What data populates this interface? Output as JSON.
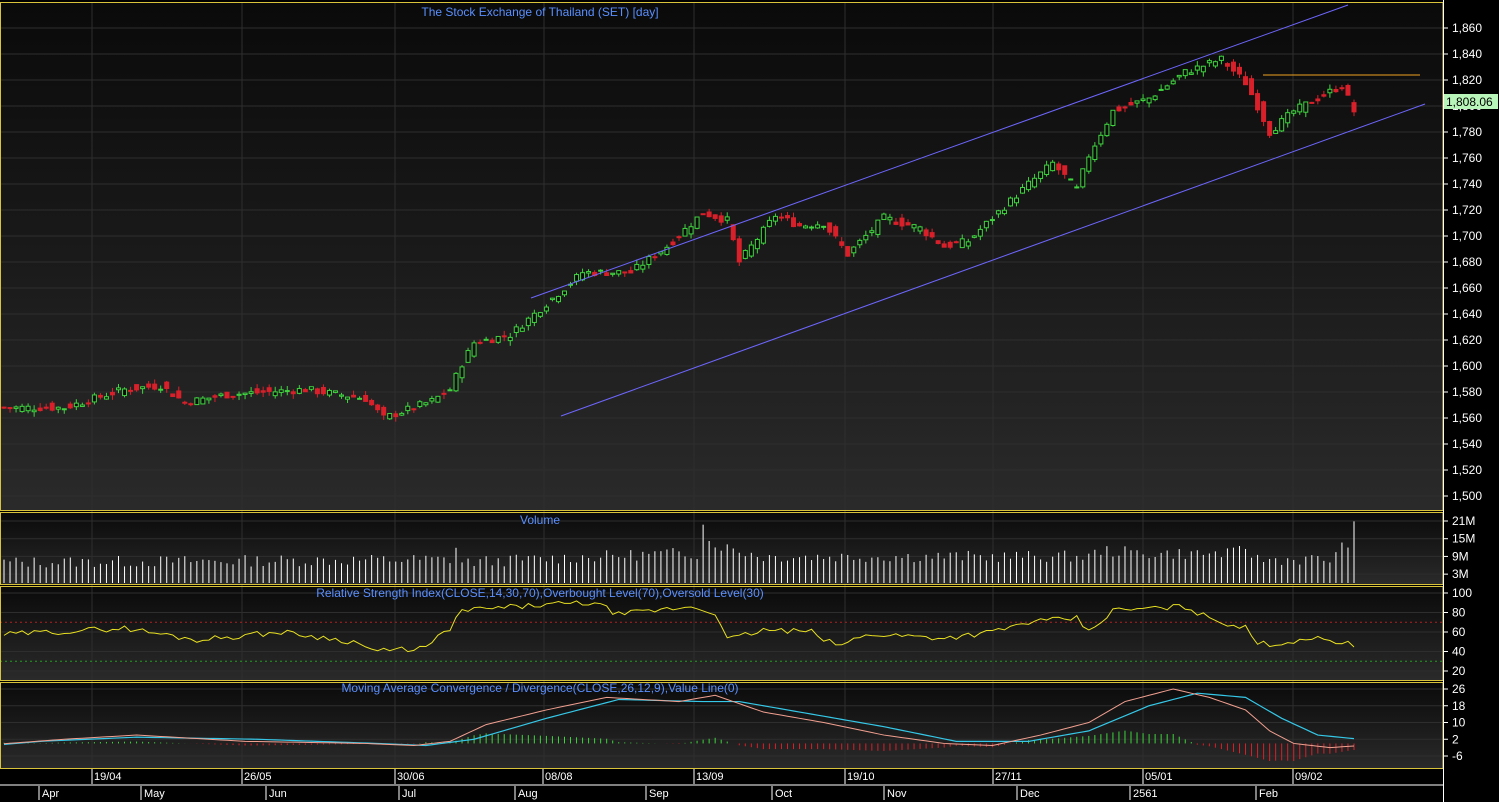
{
  "colors": {
    "background": "#000000",
    "grid": "#2e2e2e",
    "panel_border": "#d9c33a",
    "title": "#5a8fff",
    "up": "#3fd43f",
    "down": "#d8202a",
    "channel": "#6d66ff",
    "resistance": "#f0a020",
    "rsi": "#e8e020",
    "macd": "#f2a090",
    "signal": "#35c8e8",
    "volume": "#ffffff",
    "last_price_box": "#b8f5b8"
  },
  "price_panel": {
    "title": "The Stock Exchange of Thailand (SET) [day]",
    "last_price_label": "1,808.06",
    "y_tick_labels": [
      "1,860",
      "1,840",
      "1,820",
      "1,800",
      "1,780",
      "1,760",
      "1,740",
      "1,720",
      "1,700",
      "1,680",
      "1,660",
      "1,640",
      "1,620",
      "1,600",
      "1,580",
      "1,560",
      "1,540",
      "1,520",
      "1,500"
    ]
  },
  "volume_panel": {
    "title": "Volume",
    "y_tick_labels": [
      "21M",
      "15M",
      "9M",
      "3M"
    ]
  },
  "rsi_panel": {
    "title": "Relative Strength Index(CLOSE,14,30,70),Overbought Level(70),Oversold Level(30)",
    "y_tick_labels": [
      "100",
      "80",
      "60",
      "40",
      "20"
    ]
  },
  "macd_panel": {
    "title": "Moving Average Convergence / Divergence(CLOSE,26,12,9),Value Line(0)",
    "y_tick_labels": [
      "26",
      "18",
      "10",
      "2",
      "-6"
    ]
  },
  "x_axis": {
    "date_labels": [
      "19/04",
      "26/05",
      "30/06",
      "08/08",
      "13/09",
      "19/10",
      "27/11",
      "05/01",
      "09/02"
    ],
    "month_labels": [
      "Apr",
      "May",
      "Jun",
      "Jul",
      "Aug",
      "Sep",
      "Oct",
      "Nov",
      "Dec",
      "2561",
      "Feb"
    ]
  },
  "chart_data": [
    {
      "type": "candlestick",
      "title": "The Stock Exchange of Thailand (SET) [day]",
      "ylim": [
        1480,
        1870
      ],
      "last_close": 1808.06,
      "close_series": {
        "count": 225,
        "keyframes": [
          [
            0,
            1570
          ],
          [
            8,
            1583
          ],
          [
            14,
            1588
          ],
          [
            20,
            1566
          ],
          [
            28,
            1568
          ],
          [
            33,
            1568
          ],
          [
            36,
            1536
          ],
          [
            40,
            1555
          ],
          [
            45,
            1568
          ],
          [
            60,
            1568
          ],
          [
            70,
            1582
          ],
          [
            76,
            1585
          ],
          [
            80,
            1572
          ],
          [
            87,
            1578
          ],
          [
            100,
            1582
          ],
          [
            110,
            1575
          ],
          [
            113,
            1560
          ],
          [
            121,
            1573
          ],
          [
            124,
            1582
          ],
          [
            126,
            1602
          ],
          [
            128,
            1618
          ],
          [
            134,
            1624
          ],
          [
            142,
            1656
          ],
          [
            146,
            1672
          ],
          [
            154,
            1672
          ],
          [
            160,
            1692
          ],
          [
            166,
            1718
          ],
          [
            170,
            1712
          ],
          [
            172,
            1680
          ],
          [
            178,
            1716
          ],
          [
            182,
            1708
          ],
          [
            186,
            1710
          ],
          [
            190,
            1686
          ],
          [
            196,
            1714
          ],
          [
            202,
            1706
          ],
          [
            206,
            1692
          ],
          [
            210,
            1696
          ],
          [
            214,
            1714
          ],
          [
            220,
            1740
          ],
          [
            224,
            1756
          ],
          [
            228,
            1736
          ],
          [
            230,
            1762
          ],
          [
            234,
            1796
          ],
          [
            240,
            1806
          ],
          [
            246,
            1826
          ],
          [
            252,
            1836
          ],
          [
            256,
            1818
          ],
          [
            258,
            1800
          ],
          [
            260,
            1780
          ],
          [
            264,
            1796
          ],
          [
            268,
            1806
          ],
          [
            272,
            1816
          ],
          [
            274,
            1796
          ],
          [
            275,
            1808.06
          ]
        ],
        "first_index": 50
      },
      "channel_upper": {
        "x": [
          "~07/08",
          "~26/02"
        ],
        "y": [
          1648,
          1872
        ]
      },
      "channel_lower": {
        "x": [
          "~08/08",
          "~26/02"
        ],
        "y": [
          1556,
          1802
        ]
      },
      "resistance_line": {
        "x": [
          "~16/01",
          "~26/02"
        ],
        "y": [
          1823,
          1823
        ]
      }
    },
    {
      "type": "bar",
      "title": "Volume",
      "units": "M",
      "ylim": [
        0,
        23
      ],
      "keyframes": [
        [
          0,
          7
        ],
        [
          50,
          7
        ],
        [
          124,
          8
        ],
        [
          125,
          12
        ],
        [
          126,
          7
        ],
        [
          160,
          10
        ],
        [
          165,
          10
        ],
        [
          166,
          21
        ],
        [
          167,
          14
        ],
        [
          170,
          12
        ],
        [
          176,
          9
        ],
        [
          230,
          9
        ],
        [
          232,
          11
        ],
        [
          240,
          10
        ],
        [
          254,
          10
        ],
        [
          256,
          12
        ],
        [
          258,
          8
        ],
        [
          270,
          8
        ],
        [
          273,
          14
        ],
        [
          274,
          19
        ],
        [
          275,
          16
        ]
      ],
      "first_index": 50
    },
    {
      "type": "line",
      "title": "Relative Strength Index(CLOSE,14,30,70),Overbought Level(70),Oversold Level(30)",
      "ylim": [
        10,
        102
      ],
      "overbought": 70,
      "oversold": 30,
      "keyframes": [
        [
          0,
          58
        ],
        [
          10,
          60
        ],
        [
          18,
          62
        ],
        [
          24,
          54
        ],
        [
          30,
          48
        ],
        [
          34,
          36
        ],
        [
          36,
          30
        ],
        [
          40,
          42
        ],
        [
          46,
          56
        ],
        [
          58,
          60
        ],
        [
          70,
          64
        ],
        [
          82,
          52
        ],
        [
          96,
          60
        ],
        [
          108,
          50
        ],
        [
          112,
          40
        ],
        [
          120,
          44
        ],
        [
          124,
          64
        ],
        [
          126,
          82
        ],
        [
          140,
          88
        ],
        [
          148,
          90
        ],
        [
          152,
          78
        ],
        [
          164,
          86
        ],
        [
          168,
          80
        ],
        [
          170,
          52
        ],
        [
          176,
          62
        ],
        [
          184,
          60
        ],
        [
          188,
          46
        ],
        [
          194,
          58
        ],
        [
          206,
          54
        ],
        [
          214,
          60
        ],
        [
          220,
          70
        ],
        [
          228,
          74
        ],
        [
          230,
          60
        ],
        [
          234,
          82
        ],
        [
          246,
          86
        ],
        [
          250,
          74
        ],
        [
          256,
          64
        ],
        [
          258,
          48
        ],
        [
          262,
          48
        ],
        [
          266,
          54
        ],
        [
          272,
          50
        ],
        [
          274,
          46
        ],
        [
          275,
          54
        ]
      ],
      "first_index": 50
    },
    {
      "type": "line",
      "title": "Moving Average Convergence / Divergence(CLOSE,26,12,9),Value Line(0)",
      "ylim": [
        -10,
        28
      ],
      "series": [
        {
          "role": "macd",
          "keyframes": [
            [
              0,
              2
            ],
            [
              8,
              5
            ],
            [
              14,
              6
            ],
            [
              24,
              2
            ],
            [
              34,
              -2
            ],
            [
              40,
              -4
            ],
            [
              46,
              -1
            ],
            [
              60,
              2
            ],
            [
              72,
              4
            ],
            [
              90,
              1
            ],
            [
              110,
              0
            ],
            [
              118,
              -1
            ],
            [
              124,
              1
            ],
            [
              130,
              9
            ],
            [
              140,
              16
            ],
            [
              150,
              22
            ],
            [
              162,
              20
            ],
            [
              168,
              23
            ],
            [
              176,
              15
            ],
            [
              186,
              10
            ],
            [
              196,
              4
            ],
            [
              206,
              0
            ],
            [
              214,
              -1
            ],
            [
              222,
              4
            ],
            [
              230,
              10
            ],
            [
              236,
              20
            ],
            [
              244,
              26
            ],
            [
              250,
              22
            ],
            [
              256,
              16
            ],
            [
              260,
              6
            ],
            [
              264,
              0
            ],
            [
              270,
              -2
            ],
            [
              275,
              -1
            ]
          ]
        },
        {
          "role": "signal",
          "keyframes": [
            [
              0,
              0
            ],
            [
              12,
              4
            ],
            [
              22,
              3
            ],
            [
              34,
              0
            ],
            [
              44,
              -2
            ],
            [
              56,
              1
            ],
            [
              72,
              3
            ],
            [
              92,
              2
            ],
            [
              112,
              0
            ],
            [
              120,
              -1
            ],
            [
              128,
              2
            ],
            [
              140,
              12
            ],
            [
              152,
              21
            ],
            [
              166,
              20
            ],
            [
              172,
              20
            ],
            [
              184,
              14
            ],
            [
              196,
              8
            ],
            [
              208,
              1
            ],
            [
              220,
              1
            ],
            [
              230,
              6
            ],
            [
              240,
              18
            ],
            [
              248,
              24
            ],
            [
              256,
              22
            ],
            [
              262,
              12
            ],
            [
              268,
              4
            ],
            [
              275,
              2
            ]
          ]
        }
      ],
      "first_index": 50
    }
  ]
}
